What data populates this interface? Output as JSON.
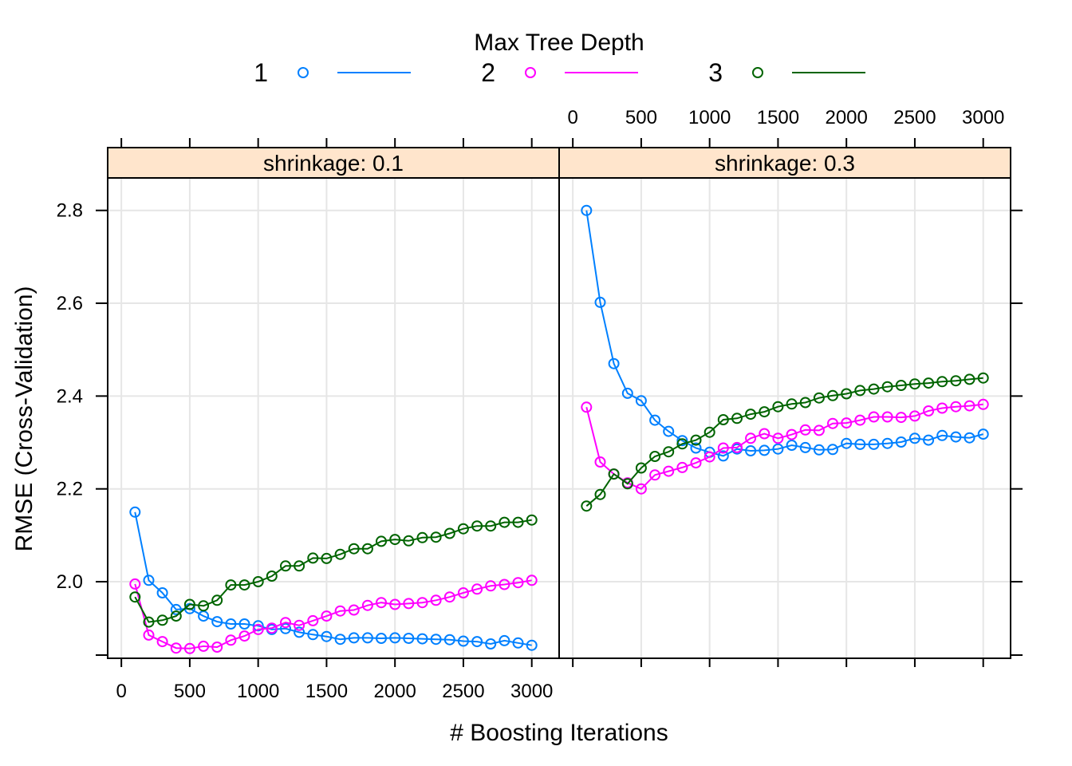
{
  "chart_data": {
    "type": "line",
    "title": "",
    "xlabel": "# Boosting Iterations",
    "ylabel": "RMSE (Cross-Validation)",
    "xlim": [
      -100,
      3200
    ],
    "ylim": [
      1.835,
      2.87
    ],
    "xticks": [
      0,
      500,
      1000,
      1500,
      2000,
      2500,
      3000
    ],
    "yticks": [
      2.0,
      2.2,
      2.4,
      2.6,
      2.8
    ],
    "ytick_labels": [
      "2.0",
      "2.2",
      "2.4",
      "2.6",
      "2.8"
    ],
    "grid": true,
    "legend": {
      "title": "Max Tree Depth",
      "placement": "top",
      "entries": [
        {
          "label": "1",
          "color": "#0080ff"
        },
        {
          "label": "2",
          "color": "#ff00ff"
        },
        {
          "label": "3",
          "color": "#006400"
        }
      ]
    },
    "x": [
      100,
      200,
      300,
      400,
      500,
      600,
      700,
      800,
      900,
      1000,
      1100,
      1200,
      1300,
      1400,
      1500,
      1600,
      1700,
      1800,
      1900,
      2000,
      2100,
      2200,
      2300,
      2400,
      2500,
      2600,
      2700,
      2800,
      2900,
      3000
    ],
    "panels": [
      {
        "strip": "shrinkage: 0.1",
        "series": [
          {
            "name": "1",
            "color": "#0080ff",
            "values": [
              2.15,
              2.003,
              1.976,
              1.94,
              1.942,
              1.926,
              1.914,
              1.909,
              1.909,
              1.905,
              1.897,
              1.899,
              1.891,
              1.886,
              1.882,
              1.876,
              1.879,
              1.879,
              1.878,
              1.879,
              1.878,
              1.877,
              1.876,
              1.875,
              1.872,
              1.871,
              1.866,
              1.873,
              1.868,
              1.863
            ]
          },
          {
            "name": "2",
            "color": "#ff00ff",
            "values": [
              1.995,
              1.885,
              1.871,
              1.857,
              1.856,
              1.861,
              1.859,
              1.874,
              1.883,
              1.897,
              1.9,
              1.912,
              1.906,
              1.916,
              1.926,
              1.937,
              1.939,
              1.949,
              1.955,
              1.951,
              1.953,
              1.955,
              1.96,
              1.967,
              1.976,
              1.984,
              1.991,
              1.994,
              1.998,
              2.003
            ]
          },
          {
            "name": "3",
            "color": "#006400",
            "values": [
              1.967,
              1.913,
              1.917,
              1.926,
              1.951,
              1.948,
              1.96,
              1.993,
              1.993,
              2.0,
              2.012,
              2.034,
              2.034,
              2.051,
              2.05,
              2.059,
              2.071,
              2.071,
              2.087,
              2.091,
              2.088,
              2.095,
              2.096,
              2.104,
              2.114,
              2.12,
              2.12,
              2.128,
              2.128,
              2.133
            ]
          }
        ]
      },
      {
        "strip": "shrinkage: 0.3",
        "series": [
          {
            "name": "1",
            "color": "#0080ff",
            "values": [
              2.8,
              2.602,
              2.47,
              2.406,
              2.39,
              2.348,
              2.324,
              2.304,
              2.288,
              2.279,
              2.271,
              2.286,
              2.282,
              2.283,
              2.286,
              2.294,
              2.289,
              2.284,
              2.285,
              2.298,
              2.296,
              2.296,
              2.298,
              2.301,
              2.309,
              2.305,
              2.315,
              2.312,
              2.31,
              2.318
            ]
          },
          {
            "name": "2",
            "color": "#ff00ff",
            "values": [
              2.376,
              2.258,
              2.232,
              2.213,
              2.2,
              2.23,
              2.238,
              2.246,
              2.256,
              2.269,
              2.288,
              2.289,
              2.309,
              2.319,
              2.309,
              2.317,
              2.327,
              2.326,
              2.341,
              2.342,
              2.348,
              2.355,
              2.355,
              2.354,
              2.357,
              2.368,
              2.374,
              2.377,
              2.379,
              2.382
            ]
          },
          {
            "name": "3",
            "color": "#006400",
            "values": [
              2.163,
              2.188,
              2.232,
              2.211,
              2.245,
              2.27,
              2.28,
              2.297,
              2.305,
              2.322,
              2.349,
              2.352,
              2.361,
              2.366,
              2.377,
              2.383,
              2.386,
              2.396,
              2.401,
              2.405,
              2.412,
              2.415,
              2.42,
              2.423,
              2.426,
              2.428,
              2.431,
              2.433,
              2.436,
              2.439
            ]
          }
        ]
      }
    ]
  }
}
